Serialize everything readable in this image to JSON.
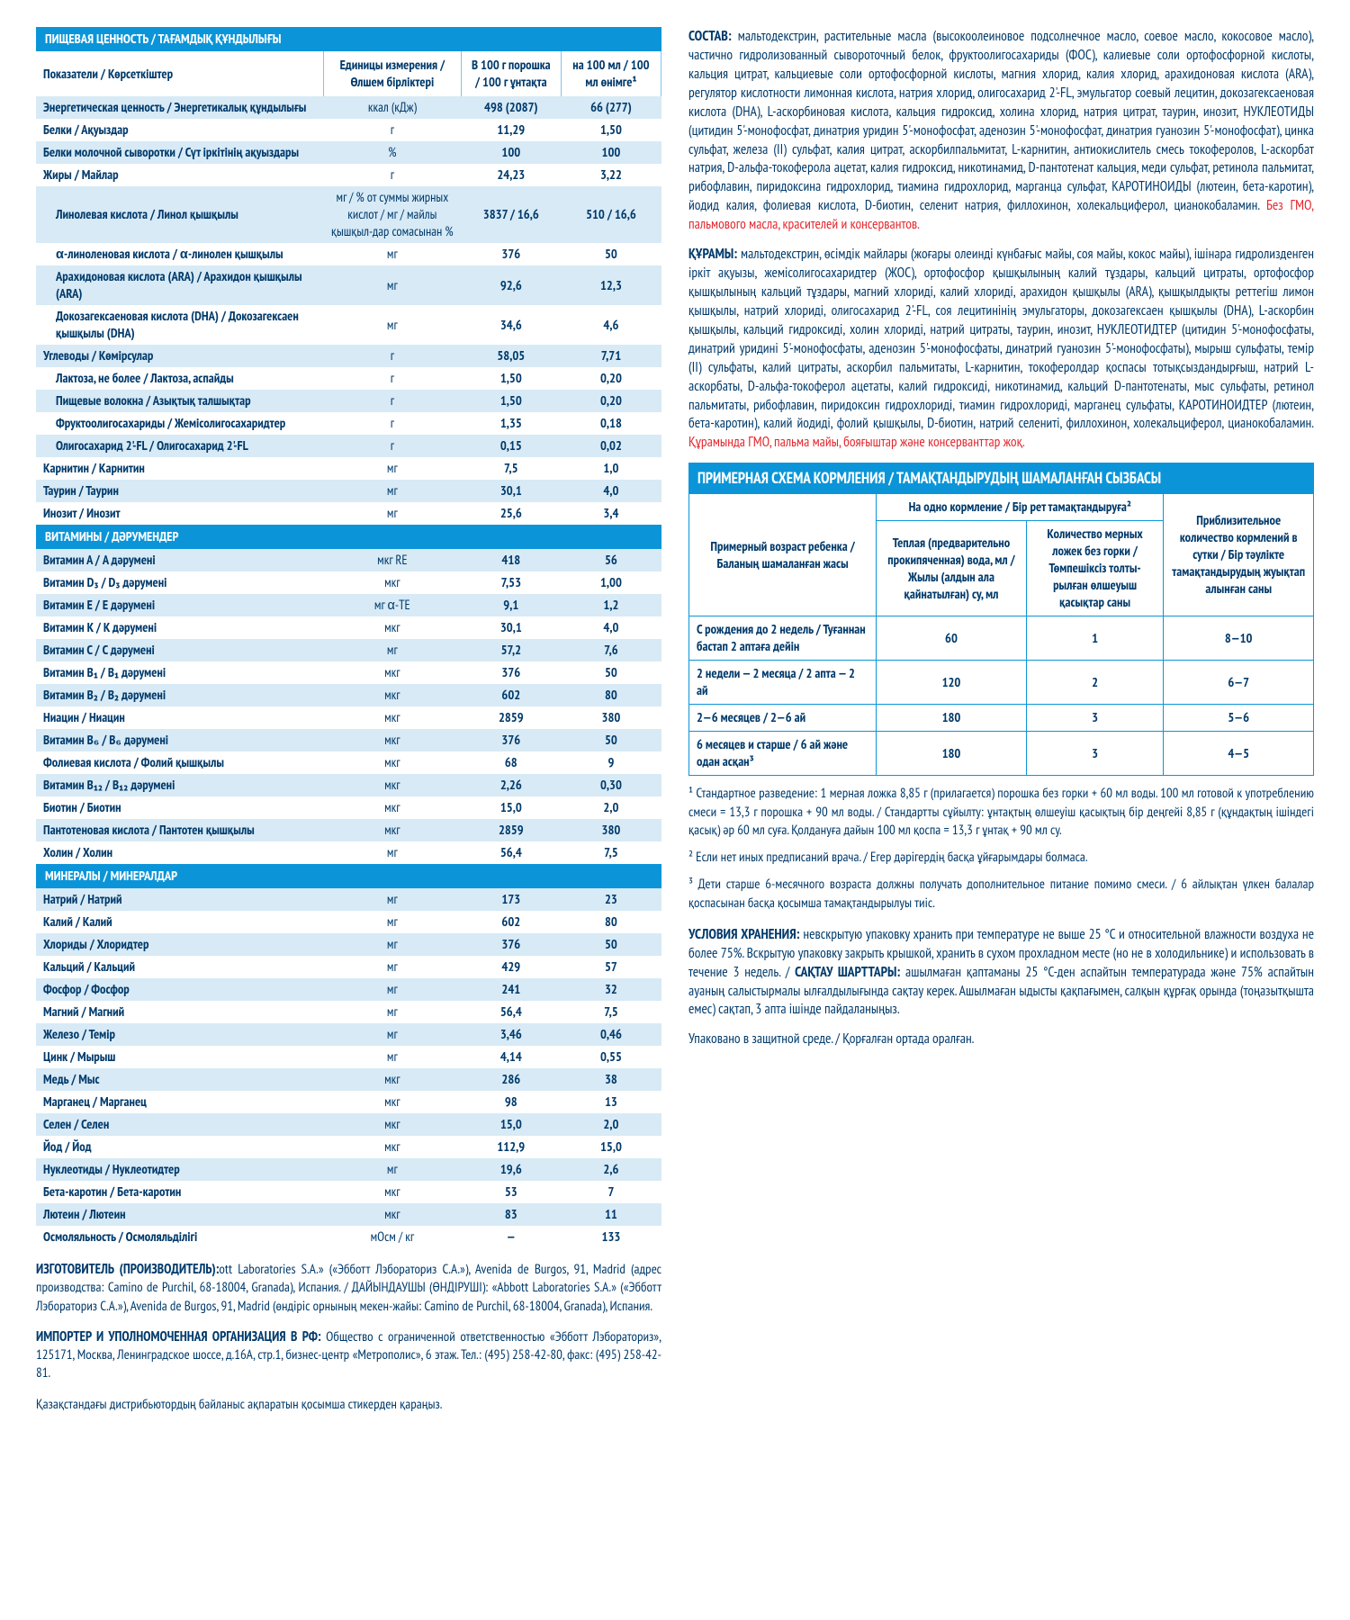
{
  "nutrition_table": {
    "title": "ПИЩЕВАЯ ЦЕННОСТЬ / ТАҒАМДЫҚ ҚҰНДЫЛЫҒЫ",
    "head_label": "Показатели / Көрсеткіштер",
    "head_unit": "Единицы измерения / Өлшем бірліктері",
    "head_v1": "В 100 г порошка / 100 г ұнтақта",
    "head_v2": "на 100 мл / 100 мл өнімге¹",
    "rows": [
      {
        "n": "Энергетическая ценность / Энергетикалық құндылығы",
        "u": "ккал (кДж)",
        "v1": "498 (2087)",
        "v2": "66 (277)"
      },
      {
        "n": "Белки / Ақуыздар",
        "u": "г",
        "v1": "11,29",
        "v2": "1,50"
      },
      {
        "n": "Белки молочной сыворотки / Сүт іркітінің ақуыздары",
        "u": "%",
        "v1": "100",
        "v2": "100"
      },
      {
        "n": "Жиры / Майлар",
        "u": "г",
        "v1": "24,23",
        "v2": "3,22"
      },
      {
        "n": "Линолевая кислота / Линол қышқылы",
        "u": "мг / % от суммы жирных кислот / мг / майлы қышқыл-дар сомасынан %",
        "v1": "3837 / 16,6",
        "v2": "510 / 16,6",
        "indent": true
      },
      {
        "n": "α-линоленовая кислота / α-линолен қышқылы",
        "u": "мг",
        "v1": "376",
        "v2": "50",
        "indent": true
      },
      {
        "n": "Арахидоновая кислота (ARA) / Арахидон қышқылы (ARA)",
        "u": "мг",
        "v1": "92,6",
        "v2": "12,3",
        "indent": true
      },
      {
        "n": "Докозагексаеновая кислота (DHA) / Докозагексаен қышқылы (DHA)",
        "u": "мг",
        "v1": "34,6",
        "v2": "4,6",
        "indent": true
      },
      {
        "n": "Углеводы / Көмірсулар",
        "u": "г",
        "v1": "58,05",
        "v2": "7,71"
      },
      {
        "n": "Лактоза, не более / Лактоза, аспайды",
        "u": "г",
        "v1": "1,50",
        "v2": "0,20",
        "indent": true
      },
      {
        "n": "Пищевые волокна / Азықтық талшықтар",
        "u": "г",
        "v1": "1,50",
        "v2": "0,20",
        "indent": true
      },
      {
        "n": "Фруктоолигосахариды / Жемісолигосахаридтер",
        "u": "г",
        "v1": "1,35",
        "v2": "0,18",
        "indent": true
      },
      {
        "n": "Олигосахарид 2'-FL / Олигосахарид 2'-FL",
        "u": "г",
        "v1": "0,15",
        "v2": "0,02",
        "indent": true
      },
      {
        "n": "Карнитин / Карнитин",
        "u": "мг",
        "v1": "7,5",
        "v2": "1,0"
      },
      {
        "n": "Таурин / Таурин",
        "u": "мг",
        "v1": "30,1",
        "v2": "4,0"
      },
      {
        "n": "Инозит / Инозит",
        "u": "мг",
        "v1": "25,6",
        "v2": "3,4"
      }
    ],
    "vitamins_header": "ВИТАМИНЫ / ДӘРУМЕНДЕР",
    "vitamins": [
      {
        "n": "Витамин А / A дәрумені",
        "u": "мкг RE",
        "v1": "418",
        "v2": "56"
      },
      {
        "n": "Витамин D₃ / D₃ дәрумені",
        "u": "мкг",
        "v1": "7,53",
        "v2": "1,00"
      },
      {
        "n": "Витамин Е / E дәрумені",
        "u": "мг α-TE",
        "v1": "9,1",
        "v2": "1,2"
      },
      {
        "n": "Витамин К / K дәрумені",
        "u": "мкг",
        "v1": "30,1",
        "v2": "4,0"
      },
      {
        "n": "Витамин С / C дәрумені",
        "u": "мг",
        "v1": "57,2",
        "v2": "7,6"
      },
      {
        "n": "Витамин В₁ / B₁ дәрумені",
        "u": "мкг",
        "v1": "376",
        "v2": "50"
      },
      {
        "n": "Витамин В₂ / B₂ дәрумені",
        "u": "мкг",
        "v1": "602",
        "v2": "80"
      },
      {
        "n": "Ниацин / Ниацин",
        "u": "мкг",
        "v1": "2859",
        "v2": "380"
      },
      {
        "n": "Витамин В₆ / B₆ дәрумені",
        "u": "мкг",
        "v1": "376",
        "v2": "50"
      },
      {
        "n": "Фолиевая кислота / Фолий қышқылы",
        "u": "мкг",
        "v1": "68",
        "v2": "9"
      },
      {
        "n": "Витамин В₁₂ / B₁₂ дәрумені",
        "u": "мкг",
        "v1": "2,26",
        "v2": "0,30"
      },
      {
        "n": "Биотин / Биотин",
        "u": "мкг",
        "v1": "15,0",
        "v2": "2,0"
      },
      {
        "n": "Пантотеновая кислота / Пантотен қышқылы",
        "u": "мкг",
        "v1": "2859",
        "v2": "380"
      },
      {
        "n": "Холин / Холин",
        "u": "мг",
        "v1": "56,4",
        "v2": "7,5"
      }
    ],
    "minerals_header": "МИНЕРАЛЫ / МИНЕРАЛДАР",
    "minerals": [
      {
        "n": "Натрий / Натрий",
        "u": "мг",
        "v1": "173",
        "v2": "23"
      },
      {
        "n": "Калий / Калий",
        "u": "мг",
        "v1": "602",
        "v2": "80"
      },
      {
        "n": "Хлориды / Хлоридтер",
        "u": "мг",
        "v1": "376",
        "v2": "50"
      },
      {
        "n": "Кальций / Кальций",
        "u": "мг",
        "v1": "429",
        "v2": "57"
      },
      {
        "n": "Фосфор / Фосфор",
        "u": "мг",
        "v1": "241",
        "v2": "32"
      },
      {
        "n": "Магний / Магний",
        "u": "мг",
        "v1": "56,4",
        "v2": "7,5"
      },
      {
        "n": "Железо / Темір",
        "u": "мг",
        "v1": "3,46",
        "v2": "0,46"
      },
      {
        "n": "Цинк / Мырыш",
        "u": "мг",
        "v1": "4,14",
        "v2": "0,55"
      },
      {
        "n": "Медь / Мыс",
        "u": "мкг",
        "v1": "286",
        "v2": "38"
      },
      {
        "n": "Марганец / Марганец",
        "u": "мкг",
        "v1": "98",
        "v2": "13"
      },
      {
        "n": "Селен / Селен",
        "u": "мкг",
        "v1": "15,0",
        "v2": "2,0"
      },
      {
        "n": "Йод / Йод",
        "u": "мкг",
        "v1": "112,9",
        "v2": "15,0"
      },
      {
        "n": "Нуклеотиды / Нуклеотидтер",
        "u": "мг",
        "v1": "19,6",
        "v2": "2,6"
      },
      {
        "n": "Бета-каротин / Бета-каротин",
        "u": "мкг",
        "v1": "53",
        "v2": "7"
      },
      {
        "n": "Лютеин / Лютеин",
        "u": "мкг",
        "v1": "83",
        "v2": "11"
      },
      {
        "n": "Осмоляльность / Осмоляльділігі",
        "u": "мОсм / кг",
        "v1": "—",
        "v2": "133"
      }
    ],
    "colors": {
      "header_bg": "#0b95d8",
      "header_fg": "#ffffff",
      "row_odd_bg": "#d7eaf6",
      "row_even_bg": "#ffffff",
      "text": "#003a6b"
    }
  },
  "manufacturer": {
    "p1": "ИЗГОТОВИТЕЛЬ (ПРОИЗВОДИТЕЛЬ): «Abbott Laboratories S.A.» («Эбботт Лэбораториз С.А.»), Avenida de Burgos, 91, Madrid (адрес производства: Camino de Purchil, 68-18004, Granada), Испания. / ДАЙЫНДАУШЫ (ӨНДІРУШІ): «Abbott Laboratories S.A.» («Эбботт Лэбораториз С.А.»), Avenida de Burgos, 91, Madrid (өндіріс орнының мекен-жайы: Camino de Purchil, 68-18004, Granada), Испания.",
    "p2": "ИМПОРТЕР И УПОЛНОМОЧЕННАЯ ОРГАНИЗАЦИЯ В РФ: Общество с ограниченной ответственностью «Эбботт Лэбораториз», 125171, Москва, Ленинградское шоссе, д.16А, стр.1, бизнес-центр «Метрополис», 6 этаж. Тел.: (495) 258-42-80, факс: (495) 258-42-81.",
    "p3": "Қазақстандағы дистрибьютордың байланыс ақпаратын қосымша стикерден қараңыз."
  },
  "sostav": {
    "label": "СОСТАВ:",
    "text": " мальтодекстрин, растительные масла (высокоолеиновое подсолнечное масло, соевое масло, кокосовое масло), частично гидролизованный сывороточный белок, фруктоолигосахариды (ФОС), калиевые соли ортофосфорной кислоты, кальция цитрат, кальциевые соли ортофосфорной кислоты, магния хлорид, калия хлорид, арахидоновая кислота (ARA), регулятор кислотности лимонная кислота, натрия хлорид, олигосахарид 2'-FL, эмульгатор соевый лецитин, докозагексаеновая кислота (DHA), L-аскорбиновая кислота, кальция гидроксид, холина хлорид, натрия цитрат, таурин, инозит, НУКЛЕОТИДЫ (цитидин 5'-монофосфат, динатрия уридин 5'-монофосфат, аденозин 5'-монофосфат, динатрия гуанозин 5'-монофосфат), цинка сульфат, железа (II) сульфат, калия цитрат, аскорбилпальмитат, L-карнитин, антиокислитель смесь токоферолов, L-аскорбат натрия, D-альфа-токоферола ацетат, калия гидроксид, никотинамид, D-пантотенат кальция, меди сульфат, ретинола пальмитат, рибофлавин, пиридоксина гидрохлорид, тиамина гидрохлорид, марганца сульфат, КАРОТИНОИДЫ (лютеин, бета-каротин), йодид калия, фолиевая кислота, D-биотин, селенит натрия, филлохинон, холекальциферол, цианокобаламин. ",
    "warn": "Без ГМО, пальмового масла, красителей и консервантов."
  },
  "kuramy": {
    "label": "ҚҰРАМЫ:",
    "text": " мальтодекстрин, өсімдік майлары (жоғары олеинді күнбағыс майы, соя майы, кокос майы), ішінара гидролизденген іркіт ақуызы, жемісолигосахаридтер (ЖОС), ортофосфор қышқылының калий тұздары, кальций цитраты, ортофосфор қышқылының кальций тұздары, магний хлориді, калий хлориді, арахидон қышқылы (ARA), қышқылдықты реттегіш лимон қышқылы, натрий хлориді, олигосахарид 2'-FL, соя лецитинінің эмульгаторы, докозагексаен қышқылы (DHA), L-аскорбин қышқылы, кальций гидроксиді, холин хлориді, натрий цитраты, таурин, инозит, НУКЛЕОТИДТЕР (цитидин 5'-монофосфаты, динатрий уридині 5'-монофосфаты, аденозин 5'-монофосфаты, динатрий гуанозин 5'-монофосфаты), мырыш сульфаты, темір (II) сульфаты, калий цитраты, аскорбил пальмитаты, L-карнитин, токоферолдар қоспасы тотықсыздандырғыш, натрий L-аскорбаты, D-альфа-токоферол ацетаты, калий гидроксиді, никотинамид, кальций D-пантотенаты, мыс сульфаты, ретинол пальмитаты, рибофлавин, пиридоксин гидрохлориді, тиамин гидрохлориді, марганец сульфаты, КАРОТИНОИДТЕР (лютеин, бета-каротин), калий йодиді, фолий қышқылы, D-биотин, натрий селениті, филлохинон, холекальциферол, цианокобаламин. ",
    "warn": "Құрамында ГМО, пальма майы, бояғыштар және консерванттар жоқ."
  },
  "feeding": {
    "title": "ПРИМЕРНАЯ СХЕМА КОРМЛЕНИЯ / ТАМАҚТАНДЫРУДЫҢ ШАМАЛАНҒАН СЫЗБАСЫ",
    "super_h": "На одно кормление / Бір рет тамақтандыруға²",
    "col_age": "Примерный возраст ребенка / Баланың шамаланған жасы",
    "col_water": "Теплая (предварительно прокипяченная) вода, мл / Жылы (алдын ала қайнатылған) су, мл",
    "col_scoops": "Количество мерных ложек без горки / Төмпешіксіз толты-рылған өлшеуыш қасықтар саны",
    "col_feeds": "Приблизительное количество кормлений в сутки / Бір тәулікте тамақтандырудың жуықтап алынған саны",
    "rows": [
      {
        "age": "С рождения до 2 недель / Туғаннан бастап 2 аптаға дейін",
        "w": "60",
        "s": "1",
        "f": "8—10"
      },
      {
        "age": "2 недели — 2 месяца / 2 апта — 2 ай",
        "w": "120",
        "s": "2",
        "f": "6—7"
      },
      {
        "age": "2—6 месяцев / 2—6 ай",
        "w": "180",
        "s": "3",
        "f": "5—6"
      },
      {
        "age": "6 месяцев и старше / 6 ай және одан асқан³",
        "w": "180",
        "s": "3",
        "f": "4—5"
      }
    ]
  },
  "footnotes": {
    "f1": "¹ Стандартное разведение: 1 мерная ложка 8,85 г (прилагается) порошка без горки + 60  мл воды. 100 мл готовой к употреблению смеси = 13,3 г порошка + 90 мл воды. / Стандартты сұйылту: ұнтақтың өлшеуіш қасықтың бір деңгейі 8,85 г (құндақтың ішіндегі қасық) әр 60 мл суға. Қолдануға дайын 100 мл қоспа = 13,3 г ұнтақ + 90 мл су.",
    "f2": "² Если нет иных предписаний врача. / Егер дәрігердің басқа ұйғарымдары болмаса.",
    "f3": "³ Дети старше 6-месячного возраста должны получать дополнительное питание  помимо смеси. / 6 айлықтан үлкен балалар қоспасынан басқа қосымша тамақтандырылуы тиіс."
  },
  "storage": {
    "label": "УСЛОВИЯ ХРАНЕНИЯ:",
    "text": " невскрытую упаковку хранить при температуре не выше 25 °С и относительной влажности воздуха не более 75%. Вскрытую упаковку закрыть крышкой, хранить в сухом прохладном месте (но не в холодильнике) и использовать в течение 3 недель. / ",
    "label2": "САҚТАУ ШАРТТАРЫ:",
    "text2": " ашылмаған қаптаманы  25 °С-ден аспайтын температурада және 75% аспайтын ауаның салыстырмалы ылғалдылығында сақтау керек. Ашылмаған ыдысты қақпағымен, салқын құрғақ орында (тоңазытқышта емес) сақтап, 3 апта ішінде пайдаланыңыз.",
    "packed": "Упаковано в защитной среде. / Қорғалған ортада оралған."
  }
}
